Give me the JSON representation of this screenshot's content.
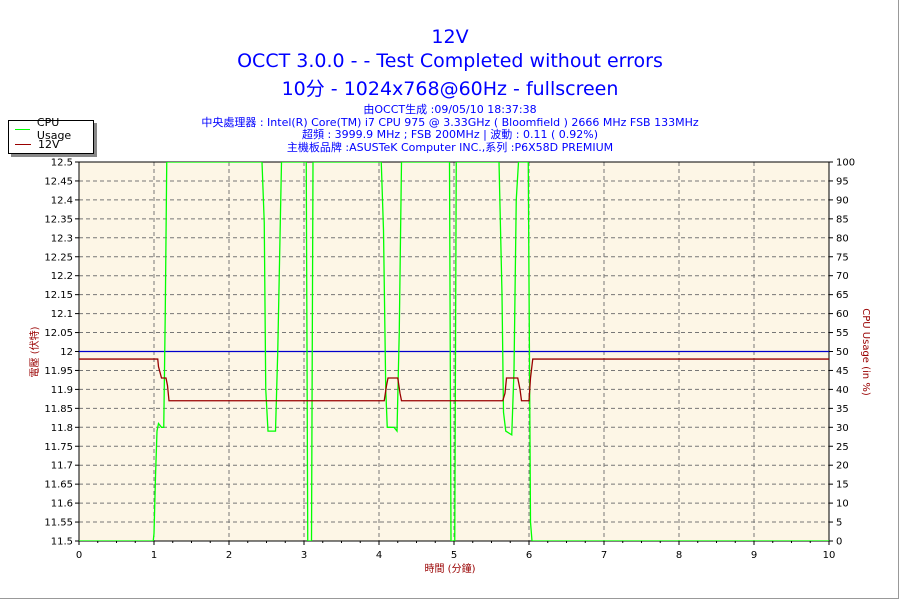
{
  "header": {
    "title": "12V",
    "subtitle": "OCCT 3.0.0 -  - Test Completed without errors",
    "config": "10分 - 1024x768@60Hz - fullscreen",
    "info_lines": [
      "由OCCT生成 :09/05/10 18:37:38",
      "中央處理器 : Intel(R) Core(TM) i7 CPU 975 @ 3.33GHz ( Bloomfield ) 2666 MHz FSB 133MHz",
      "超頻 : 3999.9 MHz ; FSB 200MHz | 波動 : 0.11 ( 0.92%)",
      "主機板品牌 :ASUSTeK Computer INC.,系列 :P6X58D PREMIUM"
    ]
  },
  "colors": {
    "title": "#0000ff",
    "plot_bg": "#fdf6e6",
    "cpu": "#00ff00",
    "voltage": "#990000",
    "reference": "#0000cc",
    "grid": "#777777",
    "axis_label": "#990000"
  },
  "chart_data": {
    "type": "line",
    "title": "12V",
    "xlabel": "時間 (分鐘)",
    "ylabel": "電壓 (伏特)",
    "y2label": "CPU Usage (in %)",
    "xlim": [
      0,
      10
    ],
    "ylim": [
      11.5,
      12.5
    ],
    "y2lim": [
      0,
      100
    ],
    "x_ticks": [
      0,
      1,
      2,
      3,
      4,
      5,
      6,
      7,
      8,
      9,
      10
    ],
    "y_ticks": [
      "12.5",
      "12.45",
      "12.4",
      "12.35",
      "12.3",
      "12.25",
      "12.2",
      "12.15",
      "12.1",
      "12.05",
      "12",
      "11.95",
      "11.9",
      "11.85",
      "11.8",
      "11.75",
      "11.7",
      "11.65",
      "11.6",
      "11.55",
      "11.5"
    ],
    "y2_ticks": [
      "100",
      "95",
      "90",
      "85",
      "80",
      "75",
      "70",
      "65",
      "60",
      "55",
      "50",
      "45",
      "40",
      "35",
      "30",
      "25",
      "20",
      "15",
      "10",
      "5",
      "0"
    ],
    "grid": true,
    "legend": {
      "position": "top-left",
      "entries": [
        "CPU Usage",
        "12V"
      ]
    },
    "reference_line": 12.0,
    "series": [
      {
        "name": "CPU Usage",
        "axis": "right",
        "points": [
          [
            0,
            0
          ],
          [
            0.99,
            0
          ],
          [
            1.0,
            2
          ],
          [
            1.02,
            17
          ],
          [
            1.04,
            29
          ],
          [
            1.06,
            31
          ],
          [
            1.1,
            30
          ],
          [
            1.13,
            30
          ],
          [
            1.15,
            60
          ],
          [
            1.17,
            100
          ],
          [
            2.44,
            100
          ],
          [
            2.47,
            84
          ],
          [
            2.49,
            40
          ],
          [
            2.52,
            29
          ],
          [
            2.62,
            29
          ],
          [
            2.65,
            50
          ],
          [
            2.7,
            100
          ],
          [
            3.03,
            100
          ],
          [
            3.05,
            0
          ],
          [
            3.1,
            0
          ],
          [
            3.12,
            100
          ],
          [
            4.03,
            100
          ],
          [
            4.06,
            82
          ],
          [
            4.09,
            40
          ],
          [
            4.11,
            30
          ],
          [
            4.2,
            30
          ],
          [
            4.24,
            29
          ],
          [
            4.27,
            55
          ],
          [
            4.3,
            100
          ],
          [
            4.94,
            100
          ],
          [
            4.96,
            0
          ],
          [
            5.01,
            0
          ],
          [
            5.03,
            100
          ],
          [
            5.6,
            100
          ],
          [
            5.64,
            65
          ],
          [
            5.66,
            34
          ],
          [
            5.69,
            29
          ],
          [
            5.77,
            28
          ],
          [
            5.8,
            45
          ],
          [
            5.83,
            90
          ],
          [
            5.86,
            100
          ],
          [
            5.99,
            100
          ],
          [
            6.02,
            5
          ],
          [
            6.04,
            0
          ],
          [
            10,
            0
          ]
        ]
      },
      {
        "name": "12V",
        "axis": "left",
        "points": [
          [
            0,
            11.98
          ],
          [
            1.05,
            11.98
          ],
          [
            1.06,
            11.96
          ],
          [
            1.08,
            11.945
          ],
          [
            1.1,
            11.93
          ],
          [
            1.16,
            11.93
          ],
          [
            1.18,
            11.91
          ],
          [
            1.2,
            11.87
          ],
          [
            4.07,
            11.87
          ],
          [
            4.1,
            11.91
          ],
          [
            4.12,
            11.93
          ],
          [
            4.25,
            11.93
          ],
          [
            4.28,
            11.89
          ],
          [
            4.3,
            11.87
          ],
          [
            5.65,
            11.87
          ],
          [
            5.68,
            11.89
          ],
          [
            5.7,
            11.93
          ],
          [
            5.85,
            11.93
          ],
          [
            5.88,
            11.9
          ],
          [
            5.9,
            11.87
          ],
          [
            6.0,
            11.87
          ],
          [
            6.02,
            11.93
          ],
          [
            6.05,
            11.98
          ],
          [
            10,
            11.98
          ]
        ]
      }
    ]
  }
}
